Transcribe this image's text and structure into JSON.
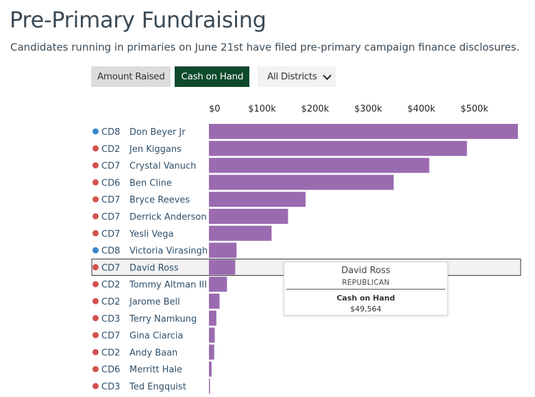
{
  "title": "Pre-Primary Fundraising",
  "subtitle": "Candidates running in primaries on June 21st have filed pre-primary campaign finance disclosures.",
  "controls": {
    "amount_raised": "Amount Raised",
    "cash_on_hand": "Cash on Hand",
    "district_select": "All Districts"
  },
  "colors": {
    "democrat": "#3a87c9",
    "republican": "#d2524f",
    "bar": "#9b6bb0",
    "active_button": "#0d4a2c"
  },
  "tooltip": {
    "name": "David Ross",
    "party": "REPUBLICAN",
    "metric": "Cash on Hand",
    "value": "$49,564"
  },
  "chart_data": {
    "type": "bar",
    "orientation": "horizontal",
    "metric": "Cash on Hand",
    "xlim": [
      0,
      580000
    ],
    "x_ticks": [
      0,
      100000,
      200000,
      300000,
      400000,
      500000
    ],
    "x_tick_labels": [
      "$0",
      "$100k",
      "$200k",
      "$300k",
      "$400k",
      "$500k"
    ],
    "highlighted": "David Ross",
    "rows": [
      {
        "district": "CD8",
        "name": "Don Beyer Jr",
        "party": "democrat",
        "value": 582000
      },
      {
        "district": "CD2",
        "name": "Jen Kiggans",
        "party": "republican",
        "value": 486000
      },
      {
        "district": "CD7",
        "name": "Crystal Vanuch",
        "party": "republican",
        "value": 415000
      },
      {
        "district": "CD6",
        "name": "Ben Cline",
        "party": "republican",
        "value": 348000
      },
      {
        "district": "CD7",
        "name": "Bryce Reeves",
        "party": "republican",
        "value": 182000
      },
      {
        "district": "CD7",
        "name": "Derrick Anderson",
        "party": "republican",
        "value": 149000
      },
      {
        "district": "CD7",
        "name": "Yesli Vega",
        "party": "republican",
        "value": 118000
      },
      {
        "district": "CD8",
        "name": "Victoria Virasingh",
        "party": "democrat",
        "value": 52000
      },
      {
        "district": "CD7",
        "name": "David Ross",
        "party": "republican",
        "value": 49564
      },
      {
        "district": "CD2",
        "name": "Tommy Altman III",
        "party": "republican",
        "value": 34000
      },
      {
        "district": "CD2",
        "name": "Jarome Bell",
        "party": "republican",
        "value": 20000
      },
      {
        "district": "CD3",
        "name": "Terry Namkung",
        "party": "republican",
        "value": 14000
      },
      {
        "district": "CD7",
        "name": "Gina Ciarcia",
        "party": "republican",
        "value": 11000
      },
      {
        "district": "CD2",
        "name": "Andy Baan",
        "party": "republican",
        "value": 10000
      },
      {
        "district": "CD6",
        "name": "Merritt Hale",
        "party": "republican",
        "value": 5000
      },
      {
        "district": "CD3",
        "name": "Ted Engquist",
        "party": "republican",
        "value": 2000
      }
    ]
  }
}
